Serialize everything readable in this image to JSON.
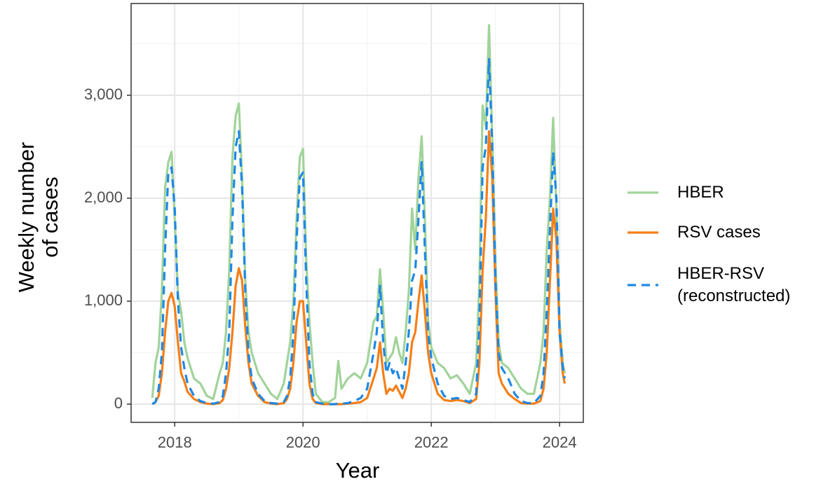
{
  "chart_data": {
    "type": "line",
    "x_label": "Year",
    "y_label": "Weekly number of cases",
    "x": [
      2017.65,
      2017.7,
      2017.75,
      2017.8,
      2017.85,
      2017.9,
      2017.95,
      2018.0,
      2018.05,
      2018.1,
      2018.15,
      2018.2,
      2018.3,
      2018.4,
      2018.5,
      2018.6,
      2018.7,
      2018.75,
      2018.8,
      2018.85,
      2018.9,
      2018.95,
      2019.0,
      2019.05,
      2019.1,
      2019.15,
      2019.2,
      2019.3,
      2019.4,
      2019.5,
      2019.6,
      2019.7,
      2019.75,
      2019.8,
      2019.85,
      2019.9,
      2019.95,
      2020.0,
      2020.05,
      2020.1,
      2020.15,
      2020.2,
      2020.3,
      2020.4,
      2020.5,
      2020.55,
      2020.6,
      2020.7,
      2020.8,
      2020.9,
      2021.0,
      2021.1,
      2021.15,
      2021.2,
      2021.25,
      2021.3,
      2021.35,
      2021.4,
      2021.45,
      2021.5,
      2021.55,
      2021.6,
      2021.65,
      2021.7,
      2021.75,
      2021.8,
      2021.85,
      2021.9,
      2021.95,
      2022.0,
      2022.1,
      2022.2,
      2022.3,
      2022.4,
      2022.5,
      2022.6,
      2022.7,
      2022.75,
      2022.8,
      2022.85,
      2022.9,
      2022.95,
      2023.0,
      2023.05,
      2023.1,
      2023.2,
      2023.3,
      2023.4,
      2023.5,
      2023.6,
      2023.7,
      2023.75,
      2023.8,
      2023.85,
      2023.9,
      2023.95,
      2024.0,
      2024.05,
      2024.08
    ],
    "series": [
      {
        "name": "HBER",
        "color": "#a1d39a",
        "dash": false,
        "values": [
          60,
          400,
          550,
          1100,
          2100,
          2350,
          2450,
          1800,
          1080,
          900,
          600,
          450,
          250,
          200,
          80,
          50,
          300,
          400,
          700,
          1300,
          2400,
          2800,
          2920,
          2200,
          1200,
          700,
          500,
          300,
          200,
          100,
          50,
          200,
          400,
          600,
          1000,
          1800,
          2400,
          2480,
          1400,
          800,
          400,
          100,
          20,
          20,
          60,
          420,
          150,
          250,
          300,
          250,
          400,
          800,
          850,
          1310,
          900,
          400,
          450,
          500,
          650,
          500,
          400,
          700,
          1100,
          1900,
          1500,
          2200,
          2600,
          1800,
          800,
          550,
          400,
          350,
          250,
          280,
          200,
          100,
          400,
          1200,
          2900,
          2700,
          3680,
          2600,
          1400,
          600,
          400,
          350,
          250,
          150,
          100,
          100,
          400,
          700,
          1500,
          2000,
          2780,
          1900,
          800,
          400,
          300
        ]
      },
      {
        "name": "RSV cases",
        "color": "#f57f17",
        "dash": false,
        "values": [
          0,
          20,
          80,
          300,
          700,
          1000,
          1080,
          950,
          600,
          300,
          220,
          120,
          50,
          20,
          5,
          0,
          10,
          40,
          150,
          350,
          700,
          1150,
          1320,
          1200,
          750,
          400,
          200,
          80,
          20,
          5,
          0,
          10,
          50,
          150,
          400,
          800,
          1000,
          1000,
          600,
          200,
          50,
          10,
          0,
          0,
          0,
          0,
          0,
          5,
          10,
          20,
          60,
          250,
          350,
          600,
          300,
          100,
          150,
          130,
          180,
          120,
          60,
          150,
          300,
          600,
          700,
          1000,
          1250,
          900,
          500,
          300,
          100,
          40,
          30,
          40,
          30,
          10,
          50,
          400,
          1300,
          1800,
          2650,
          2200,
          1100,
          300,
          200,
          100,
          50,
          10,
          5,
          5,
          30,
          150,
          500,
          1200,
          1900,
          1600,
          700,
          300,
          200
        ]
      },
      {
        "name": "HBER-RSV (reconstructed)",
        "color": "#1e88e5",
        "dash": true,
        "values": [
          0,
          20,
          150,
          500,
          1500,
          2250,
          2300,
          1900,
          1000,
          550,
          350,
          200,
          80,
          30,
          10,
          5,
          20,
          80,
          300,
          700,
          1800,
          2500,
          2650,
          2100,
          1100,
          500,
          250,
          100,
          30,
          10,
          5,
          20,
          80,
          250,
          700,
          1600,
          2200,
          2250,
          1200,
          400,
          100,
          20,
          5,
          0,
          0,
          5,
          5,
          10,
          30,
          60,
          150,
          500,
          700,
          1150,
          600,
          300,
          400,
          300,
          350,
          250,
          150,
          400,
          700,
          1200,
          1300,
          1800,
          2350,
          1500,
          700,
          450,
          200,
          80,
          50,
          60,
          40,
          20,
          100,
          800,
          2300,
          2500,
          3350,
          2500,
          1200,
          500,
          350,
          250,
          100,
          30,
          10,
          10,
          80,
          300,
          900,
          1700,
          2450,
          2000,
          700,
          350,
          250
        ]
      }
    ],
    "xlim": [
      2017.32,
      2024.37
    ],
    "ylim": [
      -177,
      3891
    ],
    "xticks": [
      2018,
      2020,
      2022,
      2024
    ],
    "yticks": [
      0,
      {
        "value": 1000,
        "label": "1,000"
      },
      {
        "value": 2000,
        "label": "2,000"
      },
      {
        "value": 3000,
        "label": "3,000"
      }
    ],
    "x_minor_ticks": [
      2019,
      2021,
      2023
    ],
    "y_minor_ticks": [
      500,
      1500,
      2500,
      3500
    ],
    "grid": true,
    "legend": "right"
  }
}
